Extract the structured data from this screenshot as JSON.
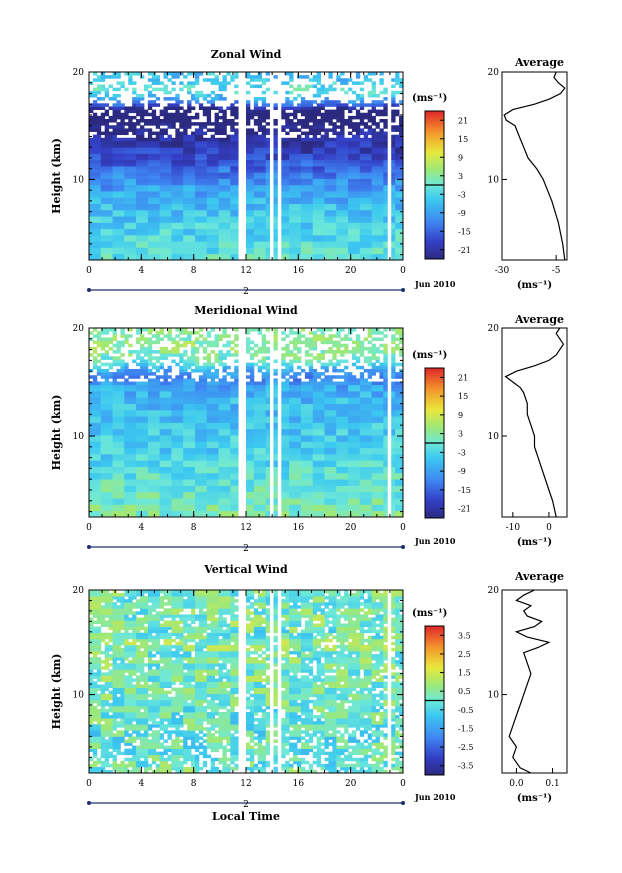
{
  "figure": {
    "height_label": "Height (km)",
    "local_time_label": "Local Time",
    "date_label": "Jun 2010",
    "day_label": "2",
    "unit_label": "(ms⁻¹)",
    "average_title": "Average"
  },
  "chart_data": [
    {
      "type": "heatmap",
      "title": "Zonal Wind",
      "ylabel": "Height (km)",
      "x_ticks": [
        "0",
        "4",
        "8",
        "12",
        "16",
        "20",
        "0"
      ],
      "xlim": [
        0,
        24
      ],
      "y_ticks": [
        "20",
        "10"
      ],
      "ylim": [
        2.5,
        20
      ],
      "colorbar": {
        "ticks": [
          "21",
          "15",
          "9",
          "3",
          "-3",
          "-9",
          "-15",
          "-21"
        ],
        "range": [
          -24,
          24
        ]
      },
      "missing_columns_hours": [
        11.7,
        14.0,
        14.5,
        22.9
      ],
      "average_profile": {
        "x_ticks": [
          "-30",
          "-5"
        ],
        "xlim": [
          -30,
          0
        ],
        "heights": [
          2.5,
          4,
          6,
          8,
          10,
          11,
          12,
          13,
          14,
          15,
          15.5,
          16,
          16.5,
          17,
          17.5,
          18,
          18.5,
          19,
          19.5,
          20
        ],
        "values": [
          -1,
          -2,
          -4,
          -7,
          -11,
          -14,
          -18,
          -20,
          -22,
          -24,
          -28,
          -29,
          -25,
          -15,
          -8,
          -3,
          -1,
          -4,
          -6,
          -5
        ]
      }
    },
    {
      "type": "heatmap",
      "title": "Meridional Wind",
      "ylabel": "Height (km)",
      "x_ticks": [
        "0",
        "4",
        "8",
        "12",
        "16",
        "20",
        "0"
      ],
      "xlim": [
        0,
        24
      ],
      "y_ticks": [
        "20",
        "10"
      ],
      "ylim": [
        2.5,
        20
      ],
      "colorbar": {
        "ticks": [
          "21",
          "15",
          "9",
          "3",
          "-3",
          "-9",
          "-15",
          "-21"
        ],
        "range": [
          -24,
          24
        ]
      },
      "missing_columns_hours": [
        11.7,
        14.0,
        14.5,
        22.9
      ],
      "average_profile": {
        "x_ticks": [
          "-10",
          "0"
        ],
        "xlim": [
          -13,
          5
        ],
        "heights": [
          2.5,
          4,
          5,
          6,
          7,
          8,
          9,
          10,
          11,
          12,
          13,
          14,
          14.5,
          15,
          15.5,
          16,
          16.5,
          17,
          17.5,
          18,
          18.5,
          19,
          19.5,
          20
        ],
        "values": [
          2,
          1,
          0,
          -1,
          -2,
          -3,
          -4,
          -4,
          -5,
          -6,
          -6,
          -7,
          -8,
          -10,
          -12,
          -9,
          -4,
          0,
          2,
          3,
          4,
          3,
          2,
          3
        ]
      }
    },
    {
      "type": "heatmap",
      "title": "Vertical Wind",
      "ylabel": "Height (km)",
      "xlabel": "Local Time",
      "x_ticks": [
        "0",
        "4",
        "8",
        "12",
        "16",
        "20",
        "0"
      ],
      "xlim": [
        0,
        24
      ],
      "y_ticks": [
        "20",
        "10"
      ],
      "ylim": [
        2.5,
        20
      ],
      "colorbar": {
        "ticks": [
          "3.5",
          "2.5",
          "1.5",
          "0.5",
          "-0.5",
          "-1.5",
          "-2.5",
          "-3.5"
        ],
        "range": [
          -4,
          4
        ]
      },
      "missing_columns_hours": [
        11.7,
        14.0,
        14.5,
        22.9
      ],
      "average_profile": {
        "x_ticks": [
          "0.0",
          "0.1"
        ],
        "xlim": [
          -0.04,
          0.14
        ],
        "heights": [
          2.5,
          3,
          4,
          5,
          6,
          7,
          8,
          9,
          10,
          11,
          12,
          13,
          14,
          14.5,
          15,
          15.5,
          16,
          16.5,
          17,
          17.5,
          18,
          18.5,
          19,
          19.5,
          20
        ],
        "values": [
          0.04,
          0.01,
          -0.01,
          0.0,
          -0.02,
          -0.01,
          0.0,
          0.01,
          0.02,
          0.03,
          0.04,
          0.03,
          0.02,
          0.06,
          0.09,
          0.03,
          0.0,
          0.05,
          0.07,
          0.03,
          0.02,
          0.04,
          0.0,
          0.02,
          0.05
        ]
      }
    }
  ]
}
